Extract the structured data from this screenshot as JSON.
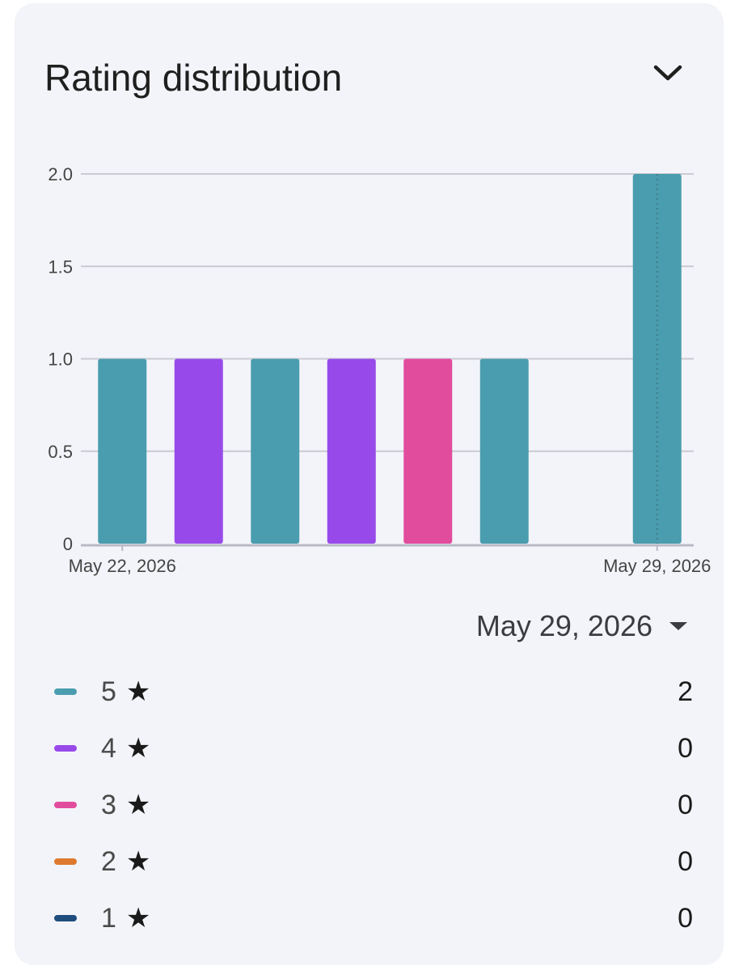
{
  "header": {
    "title": "Rating distribution",
    "collapse_icon": "chevron-down-icon"
  },
  "chart_data": {
    "type": "bar",
    "ylim": [
      0,
      2
    ],
    "y_ticks": [
      "0",
      "0.5",
      "1.0",
      "1.5",
      "2.0"
    ],
    "y_tick_values": [
      0,
      0.5,
      1,
      1.5,
      2
    ],
    "x_tick_labels": [
      {
        "label": "May 22, 2026",
        "date": "2026-05-22"
      },
      {
        "label": "May 29, 2026",
        "date": "2026-05-29"
      }
    ],
    "grid": true,
    "bars": [
      {
        "date": "2026-05-22",
        "rating": "5",
        "value": 1,
        "color": "#4a9dae"
      },
      {
        "date": "2026-05-23",
        "rating": "4",
        "value": 1,
        "color": "#9849ea"
      },
      {
        "date": "2026-05-24",
        "rating": "5",
        "value": 1,
        "color": "#4a9dae"
      },
      {
        "date": "2026-05-25",
        "rating": "4",
        "value": 1,
        "color": "#9849ea"
      },
      {
        "date": "2026-05-26",
        "rating": "3",
        "value": 1,
        "color": "#e24c9d"
      },
      {
        "date": "2026-05-27",
        "rating": "5",
        "value": 1,
        "color": "#4a9dae"
      },
      {
        "date": "2026-05-28",
        "rating": null,
        "value": 0,
        "color": null
      },
      {
        "date": "2026-05-29",
        "rating": "5",
        "value": 2,
        "color": "#4a9dae"
      }
    ],
    "selected_date": "2026-05-29"
  },
  "date_selector": {
    "value": "May 29, 2026",
    "icon": "dropdown-arrow-icon"
  },
  "legend": {
    "star_glyph": "★",
    "items": [
      {
        "rating": "5",
        "count": "2",
        "color": "#4a9dae"
      },
      {
        "rating": "4",
        "count": "0",
        "color": "#9849ea"
      },
      {
        "rating": "3",
        "count": "0",
        "color": "#e24c9d"
      },
      {
        "rating": "2",
        "count": "0",
        "color": "#de7a30"
      },
      {
        "rating": "1",
        "count": "0",
        "color": "#1e4d7e"
      }
    ]
  }
}
